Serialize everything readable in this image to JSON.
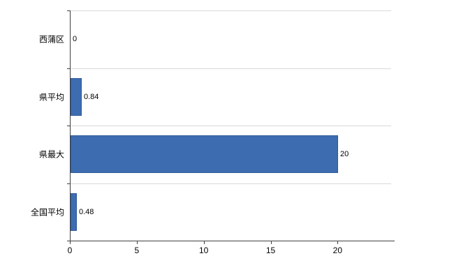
{
  "chart_data": {
    "type": "bar",
    "orientation": "horizontal",
    "title": "",
    "xlabel": "",
    "ylabel": "",
    "categories": [
      "西蒲区",
      "県平均",
      "県最大",
      "全国平均"
    ],
    "values": [
      0,
      0.84,
      20,
      0.48
    ],
    "value_labels": [
      "0",
      "0.84",
      "20",
      "0.48"
    ],
    "xlim": [
      0,
      24
    ],
    "x_ticks": [
      0,
      5,
      10,
      15,
      20
    ],
    "x_tick_labels": [
      "0",
      "5",
      "10",
      "15",
      "20"
    ],
    "grid": "horizontal",
    "legend": "none",
    "bar_color": "#3d6cb0",
    "bar_border_color": "#2e5a99",
    "axis_color": "#404040",
    "gridline_color": "#d9d9d9"
  }
}
